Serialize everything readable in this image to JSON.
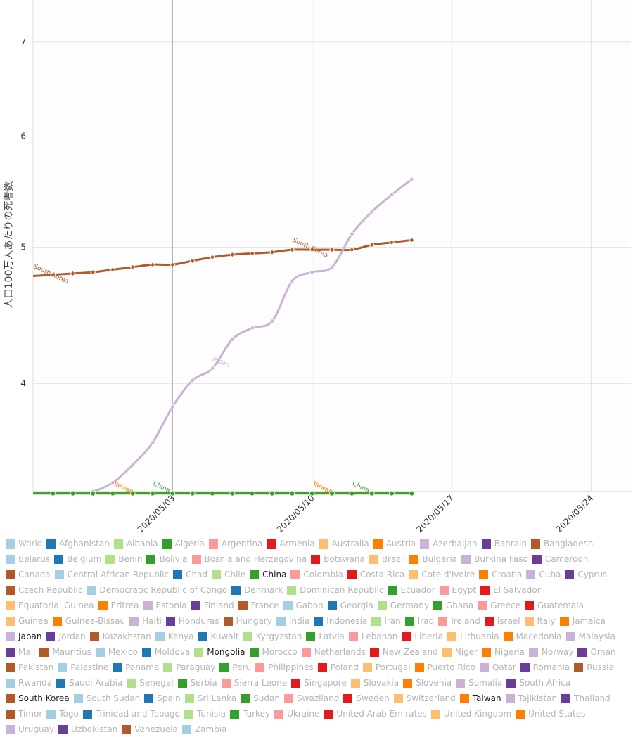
{
  "chart_data": {
    "type": "line",
    "ylabel": "人口100万人あたりの死者数",
    "xlabel": "",
    "x_ticks": [
      "2020/05/03",
      "2020/05/10",
      "2020/05/17",
      "2020/05/24"
    ],
    "y_ticks": [
      "4",
      "5",
      "6",
      "7"
    ],
    "ylim": [
      3.35,
      7.5
    ],
    "y_scale": "log",
    "xlim": [
      "2020/04/26",
      "2020/05/26"
    ],
    "cursor_date": "2020/05/03",
    "grid": true,
    "legend_position": "bottom",
    "series": [
      {
        "name": "South Korea",
        "color": "#b15928",
        "x": [
          "2020/04/26",
          "2020/04/27",
          "2020/04/28",
          "2020/04/29",
          "2020/04/30",
          "2020/05/01",
          "2020/05/02",
          "2020/05/03",
          "2020/05/04",
          "2020/05/05",
          "2020/05/06",
          "2020/05/07",
          "2020/05/08",
          "2020/05/09",
          "2020/05/10",
          "2020/05/11",
          "2020/05/12",
          "2020/05/13",
          "2020/05/14",
          "2020/05/15"
        ],
        "values": [
          4.77,
          4.78,
          4.79,
          4.8,
          4.82,
          4.84,
          4.86,
          4.86,
          4.89,
          4.92,
          4.94,
          4.95,
          4.96,
          4.98,
          4.98,
          4.98,
          4.98,
          5.02,
          5.04,
          5.06
        ],
        "labels": [
          {
            "x": "2020/04/26",
            "text": "South Korea"
          },
          {
            "x": "2020/05/09",
            "text": "South Korea"
          }
        ]
      },
      {
        "name": "Japan",
        "color": "#cab2d6",
        "x": [
          "2020/04/26",
          "2020/04/27",
          "2020/04/28",
          "2020/04/29",
          "2020/04/30",
          "2020/05/01",
          "2020/05/02",
          "2020/05/03",
          "2020/05/04",
          "2020/05/05",
          "2020/05/06",
          "2020/05/07",
          "2020/05/08",
          "2020/05/09",
          "2020/05/10",
          "2020/05/11",
          "2020/05/12",
          "2020/05/13",
          "2020/05/14",
          "2020/05/15"
        ],
        "values": [
          3.34,
          3.34,
          3.34,
          3.35,
          3.4,
          3.5,
          3.63,
          3.85,
          4.02,
          4.1,
          4.3,
          4.38,
          4.43,
          4.73,
          4.8,
          4.84,
          5.11,
          5.3,
          5.45,
          5.59
        ],
        "labels": [
          {
            "x": "2020/05/05",
            "text": "Japan"
          }
        ]
      },
      {
        "name": "China",
        "color": "#33a02c",
        "x": [
          "2020/04/26",
          "2020/04/27",
          "2020/04/28",
          "2020/04/29",
          "2020/04/30",
          "2020/05/01",
          "2020/05/02",
          "2020/05/03",
          "2020/05/04",
          "2020/05/05",
          "2020/05/06",
          "2020/05/07",
          "2020/05/08",
          "2020/05/09",
          "2020/05/10",
          "2020/05/11",
          "2020/05/12",
          "2020/05/13",
          "2020/05/14",
          "2020/05/15"
        ],
        "values": [
          3.34,
          3.34,
          3.34,
          3.34,
          3.34,
          3.34,
          3.34,
          3.34,
          3.34,
          3.34,
          3.34,
          3.34,
          3.34,
          3.34,
          3.34,
          3.34,
          3.34,
          3.34,
          3.34,
          3.34
        ],
        "labels": [
          {
            "x": "2020/05/02",
            "text": "China"
          },
          {
            "x": "2020/05/12",
            "text": "China"
          }
        ]
      },
      {
        "name": "Mongolia",
        "color": "#b2df8a",
        "x": [
          "2020/04/26",
          "2020/05/15"
        ],
        "values": [
          3.34,
          3.34
        ],
        "labels": []
      },
      {
        "name": "Taiwan",
        "color": "#ff7f00",
        "x": [
          "2020/04/26",
          "2020/05/15"
        ],
        "values": [
          3.34,
          3.34
        ],
        "labels": [
          {
            "x": "2020/04/30",
            "text": "Taiwan"
          },
          {
            "x": "2020/05/10",
            "text": "Taiwan"
          }
        ]
      }
    ]
  },
  "legend": {
    "items": [
      {
        "label": "World",
        "color": "#a6cee3",
        "active": false
      },
      {
        "label": "Afghanistan",
        "color": "#1f78b4",
        "active": false
      },
      {
        "label": "Albania",
        "color": "#b2df8a",
        "active": false
      },
      {
        "label": "Algeria",
        "color": "#33a02c",
        "active": false
      },
      {
        "label": "Argentina",
        "color": "#fb9a99",
        "active": false
      },
      {
        "label": "Armenia",
        "color": "#e31a1c",
        "active": false
      },
      {
        "label": "Australia",
        "color": "#fdbf6f",
        "active": false
      },
      {
        "label": "Austria",
        "color": "#ff7f00",
        "active": false
      },
      {
        "label": "Azerbaijan",
        "color": "#cab2d6",
        "active": false
      },
      {
        "label": "Bahrain",
        "color": "#6a3d9a",
        "active": false
      },
      {
        "label": "Bangladesh",
        "color": "#b15928",
        "active": false
      },
      {
        "label": "Belarus",
        "color": "#a6cee3",
        "active": false
      },
      {
        "label": "Belgium",
        "color": "#1f78b4",
        "active": false
      },
      {
        "label": "Benin",
        "color": "#b2df8a",
        "active": false
      },
      {
        "label": "Bolivia",
        "color": "#33a02c",
        "active": false
      },
      {
        "label": "Bosnia and Herzegovina",
        "color": "#fb9a99",
        "active": false
      },
      {
        "label": "Botswana",
        "color": "#e31a1c",
        "active": false
      },
      {
        "label": "Brazil",
        "color": "#fdbf6f",
        "active": false
      },
      {
        "label": "Bulgaria",
        "color": "#ff7f00",
        "active": false
      },
      {
        "label": "Burkina Faso",
        "color": "#cab2d6",
        "active": false
      },
      {
        "label": "Cameroon",
        "color": "#6a3d9a",
        "active": false
      },
      {
        "label": "Canada",
        "color": "#b15928",
        "active": false
      },
      {
        "label": "Central African Republic",
        "color": "#a6cee3",
        "active": false
      },
      {
        "label": "Chad",
        "color": "#1f78b4",
        "active": false
      },
      {
        "label": "Chile",
        "color": "#b2df8a",
        "active": false
      },
      {
        "label": "China",
        "color": "#33a02c",
        "active": true
      },
      {
        "label": "Colombia",
        "color": "#fb9a99",
        "active": false
      },
      {
        "label": "Costa Rica",
        "color": "#e31a1c",
        "active": false
      },
      {
        "label": "Cote d'Ivoire",
        "color": "#fdbf6f",
        "active": false
      },
      {
        "label": "Croatia",
        "color": "#ff7f00",
        "active": false
      },
      {
        "label": "Cuba",
        "color": "#cab2d6",
        "active": false
      },
      {
        "label": "Cyprus",
        "color": "#6a3d9a",
        "active": false
      },
      {
        "label": "Czech Republic",
        "color": "#b15928",
        "active": false
      },
      {
        "label": "Democratic Republic of Congo",
        "color": "#a6cee3",
        "active": false
      },
      {
        "label": "Denmark",
        "color": "#1f78b4",
        "active": false
      },
      {
        "label": "Dominican Republic",
        "color": "#b2df8a",
        "active": false
      },
      {
        "label": "Ecuador",
        "color": "#33a02c",
        "active": false
      },
      {
        "label": "Egypt",
        "color": "#fb9a99",
        "active": false
      },
      {
        "label": "El Salvador",
        "color": "#e31a1c",
        "active": false
      },
      {
        "label": "Equatorial Guinea",
        "color": "#fdbf6f",
        "active": false
      },
      {
        "label": "Eritrea",
        "color": "#ff7f00",
        "active": false
      },
      {
        "label": "Estonia",
        "color": "#cab2d6",
        "active": false
      },
      {
        "label": "Finland",
        "color": "#6a3d9a",
        "active": false
      },
      {
        "label": "France",
        "color": "#b15928",
        "active": false
      },
      {
        "label": "Gabon",
        "color": "#a6cee3",
        "active": false
      },
      {
        "label": "Georgia",
        "color": "#1f78b4",
        "active": false
      },
      {
        "label": "Germany",
        "color": "#b2df8a",
        "active": false
      },
      {
        "label": "Ghana",
        "color": "#33a02c",
        "active": false
      },
      {
        "label": "Greece",
        "color": "#fb9a99",
        "active": false
      },
      {
        "label": "Guatemala",
        "color": "#e31a1c",
        "active": false
      },
      {
        "label": "Guinea",
        "color": "#fdbf6f",
        "active": false
      },
      {
        "label": "Guinea-Bissau",
        "color": "#ff7f00",
        "active": false
      },
      {
        "label": "Haiti",
        "color": "#cab2d6",
        "active": false
      },
      {
        "label": "Honduras",
        "color": "#6a3d9a",
        "active": false
      },
      {
        "label": "Hungary",
        "color": "#b15928",
        "active": false
      },
      {
        "label": "India",
        "color": "#a6cee3",
        "active": false
      },
      {
        "label": "Indonesia",
        "color": "#1f78b4",
        "active": false
      },
      {
        "label": "Iran",
        "color": "#b2df8a",
        "active": false
      },
      {
        "label": "Iraq",
        "color": "#33a02c",
        "active": false
      },
      {
        "label": "Ireland",
        "color": "#fb9a99",
        "active": false
      },
      {
        "label": "Israel",
        "color": "#e31a1c",
        "active": false
      },
      {
        "label": "Italy",
        "color": "#fdbf6f",
        "active": false
      },
      {
        "label": "Jamaica",
        "color": "#ff7f00",
        "active": false
      },
      {
        "label": "Japan",
        "color": "#cab2d6",
        "active": true
      },
      {
        "label": "Jordan",
        "color": "#6a3d9a",
        "active": false
      },
      {
        "label": "Kazakhstan",
        "color": "#b15928",
        "active": false
      },
      {
        "label": "Kenya",
        "color": "#a6cee3",
        "active": false
      },
      {
        "label": "Kuwait",
        "color": "#1f78b4",
        "active": false
      },
      {
        "label": "Kyrgyzstan",
        "color": "#b2df8a",
        "active": false
      },
      {
        "label": "Latvia",
        "color": "#33a02c",
        "active": false
      },
      {
        "label": "Lebanon",
        "color": "#fb9a99",
        "active": false
      },
      {
        "label": "Liberia",
        "color": "#e31a1c",
        "active": false
      },
      {
        "label": "Lithuania",
        "color": "#fdbf6f",
        "active": false
      },
      {
        "label": "Macedonia",
        "color": "#ff7f00",
        "active": false
      },
      {
        "label": "Malaysia",
        "color": "#cab2d6",
        "active": false
      },
      {
        "label": "Mali",
        "color": "#6a3d9a",
        "active": false
      },
      {
        "label": "Mauritius",
        "color": "#b15928",
        "active": false
      },
      {
        "label": "Mexico",
        "color": "#a6cee3",
        "active": false
      },
      {
        "label": "Moldova",
        "color": "#1f78b4",
        "active": false
      },
      {
        "label": "Mongolia",
        "color": "#b2df8a",
        "active": true
      },
      {
        "label": "Morocco",
        "color": "#33a02c",
        "active": false
      },
      {
        "label": "Netherlands",
        "color": "#fb9a99",
        "active": false
      },
      {
        "label": "New Zealand",
        "color": "#e31a1c",
        "active": false
      },
      {
        "label": "Niger",
        "color": "#fdbf6f",
        "active": false
      },
      {
        "label": "Nigeria",
        "color": "#ff7f00",
        "active": false
      },
      {
        "label": "Norway",
        "color": "#cab2d6",
        "active": false
      },
      {
        "label": "Oman",
        "color": "#6a3d9a",
        "active": false
      },
      {
        "label": "Pakistan",
        "color": "#b15928",
        "active": false
      },
      {
        "label": "Palestine",
        "color": "#a6cee3",
        "active": false
      },
      {
        "label": "Panama",
        "color": "#1f78b4",
        "active": false
      },
      {
        "label": "Paraguay",
        "color": "#b2df8a",
        "active": false
      },
      {
        "label": "Peru",
        "color": "#33a02c",
        "active": false
      },
      {
        "label": "Philippines",
        "color": "#fb9a99",
        "active": false
      },
      {
        "label": "Poland",
        "color": "#e31a1c",
        "active": false
      },
      {
        "label": "Portugal",
        "color": "#fdbf6f",
        "active": false
      },
      {
        "label": "Puerto Rico",
        "color": "#ff7f00",
        "active": false
      },
      {
        "label": "Qatar",
        "color": "#cab2d6",
        "active": false
      },
      {
        "label": "Romania",
        "color": "#6a3d9a",
        "active": false
      },
      {
        "label": "Russia",
        "color": "#b15928",
        "active": false
      },
      {
        "label": "Rwanda",
        "color": "#a6cee3",
        "active": false
      },
      {
        "label": "Saudi Arabia",
        "color": "#1f78b4",
        "active": false
      },
      {
        "label": "Senegal",
        "color": "#b2df8a",
        "active": false
      },
      {
        "label": "Serbia",
        "color": "#33a02c",
        "active": false
      },
      {
        "label": "Sierra Leone",
        "color": "#fb9a99",
        "active": false
      },
      {
        "label": "Singapore",
        "color": "#e31a1c",
        "active": false
      },
      {
        "label": "Slovakia",
        "color": "#fdbf6f",
        "active": false
      },
      {
        "label": "Slovenia",
        "color": "#ff7f00",
        "active": false
      },
      {
        "label": "Somalia",
        "color": "#cab2d6",
        "active": false
      },
      {
        "label": "South Africa",
        "color": "#6a3d9a",
        "active": false
      },
      {
        "label": "South Korea",
        "color": "#b15928",
        "active": true
      },
      {
        "label": "South Sudan",
        "color": "#a6cee3",
        "active": false
      },
      {
        "label": "Spain",
        "color": "#1f78b4",
        "active": false
      },
      {
        "label": "Sri Lanka",
        "color": "#b2df8a",
        "active": false
      },
      {
        "label": "Sudan",
        "color": "#33a02c",
        "active": false
      },
      {
        "label": "Swaziland",
        "color": "#fb9a99",
        "active": false
      },
      {
        "label": "Sweden",
        "color": "#e31a1c",
        "active": false
      },
      {
        "label": "Switzerland",
        "color": "#fdbf6f",
        "active": false
      },
      {
        "label": "Taiwan",
        "color": "#ff7f00",
        "active": true
      },
      {
        "label": "Tajikistan",
        "color": "#cab2d6",
        "active": false
      },
      {
        "label": "Thailand",
        "color": "#6a3d9a",
        "active": false
      },
      {
        "label": "Timor",
        "color": "#b15928",
        "active": false
      },
      {
        "label": "Togo",
        "color": "#a6cee3",
        "active": false
      },
      {
        "label": "Trinidad and Tobago",
        "color": "#1f78b4",
        "active": false
      },
      {
        "label": "Tunisia",
        "color": "#b2df8a",
        "active": false
      },
      {
        "label": "Turkey",
        "color": "#33a02c",
        "active": false
      },
      {
        "label": "Ukraine",
        "color": "#fb9a99",
        "active": false
      },
      {
        "label": "United Arab Emirates",
        "color": "#e31a1c",
        "active": false
      },
      {
        "label": "United Kingdom",
        "color": "#fdbf6f",
        "active": false
      },
      {
        "label": "United States",
        "color": "#ff7f00",
        "active": false
      },
      {
        "label": "Uruguay",
        "color": "#cab2d6",
        "active": false
      },
      {
        "label": "Uzbekistan",
        "color": "#6a3d9a",
        "active": false
      },
      {
        "label": "Venezuela",
        "color": "#b15928",
        "active": false
      },
      {
        "label": "Zambia",
        "color": "#a6cee3",
        "active": false
      }
    ]
  }
}
